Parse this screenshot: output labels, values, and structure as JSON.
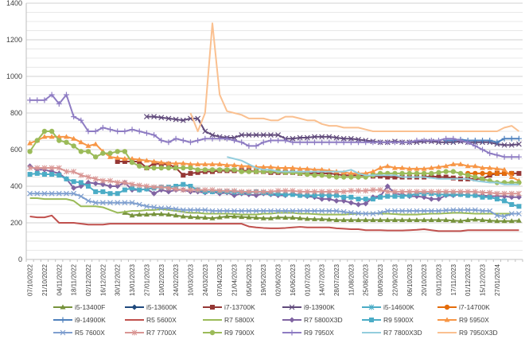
{
  "chart_data": {
    "type": "line",
    "title": "",
    "xlabel": "",
    "ylabel": "",
    "ylim": [
      0,
      1400
    ],
    "y_major_step": 200,
    "y_minor_step": 50,
    "grid": true,
    "legend_position": "bottom",
    "y_ticks": [
      "0",
      "200",
      "400",
      "600",
      "800",
      "1000",
      "1200",
      "1400"
    ],
    "x_tick_labels": [
      "07/10/2022",
      "21/10/2022",
      "04/11/2022",
      "18/11/2022",
      "02/12/2022",
      "16/12/2022",
      "30/12/2022",
      "13/01/2023",
      "27/01/2023",
      "10/02/2023",
      "24/02/2023",
      "10/03/2023",
      "24/03/2023",
      "07/04/2023",
      "21/04/2023",
      "05/05/2023",
      "19/05/2023",
      "02/06/2023",
      "16/06/2023",
      "01/07/2023",
      "14/07/2023",
      "28/07/2023",
      "11/08/2023",
      "25/08/2023",
      "08/09/2023",
      "22/09/2023",
      "06/10/2023",
      "20/10/2023",
      "03/11/2023",
      "17/11/2023",
      "01/12/2023",
      "15/12/2023",
      "27/01/2024"
    ],
    "n_points": 68,
    "series": [
      {
        "name": "i5-13400F",
        "color": "#77933C",
        "marker": "triangle",
        "start": 13,
        "values": [
          255,
          240,
          245,
          245,
          248,
          248,
          245,
          240,
          235,
          232,
          230,
          228,
          225,
          230,
          235,
          235,
          232,
          230,
          228,
          225,
          225,
          230,
          228,
          228,
          225,
          222,
          220,
          220,
          218,
          215,
          215,
          215,
          215,
          215,
          215,
          215,
          215,
          215,
          215,
          215,
          215,
          215,
          215,
          215,
          215,
          212,
          210,
          215,
          218,
          215,
          212,
          210,
          210,
          210,
          212,
          215,
          212,
          210,
          215
        ]
      },
      {
        "name": "i5-13600K",
        "color": "#1F497D",
        "marker": "diamond",
        "start": 0,
        "values": [
          null,
          null,
          null,
          null,
          null,
          null,
          null,
          null,
          null,
          null,
          null,
          null,
          null,
          null,
          null,
          null,
          null,
          null,
          null,
          null,
          null,
          null,
          null,
          null,
          null,
          null,
          null,
          null,
          null,
          null,
          null,
          null,
          null,
          null,
          null,
          null,
          null,
          null,
          null,
          null,
          null,
          null,
          null,
          null,
          null,
          null,
          null,
          null,
          null,
          null,
          null,
          null,
          null,
          null,
          null,
          null,
          null,
          null,
          null,
          null,
          null,
          null,
          null,
          null,
          null,
          null,
          null,
          null
        ]
      },
      {
        "name": "i7-13700K",
        "color": "#953735",
        "marker": "square",
        "start": 12,
        "values": [
          535,
          535,
          535,
          535,
          500,
          525,
          520,
          520,
          500,
          460,
          470,
          475,
          480,
          480,
          485,
          485,
          485,
          485,
          485,
          480,
          480,
          475,
          475,
          475,
          475,
          470,
          470,
          470,
          470,
          470,
          465,
          460,
          460,
          460,
          460,
          455,
          455,
          450,
          450,
          450,
          450,
          450,
          450,
          455,
          450,
          450,
          445,
          440,
          440,
          440,
          440,
          460,
          470,
          470,
          470,
          470,
          460,
          455,
          455,
          450,
          450,
          445,
          440,
          440,
          440,
          440
        ]
      },
      {
        "name": "i9-13900K",
        "color": "#604A7B",
        "marker": "x",
        "start": 16,
        "values": [
          780,
          780,
          775,
          770,
          765,
          760,
          770,
          770,
          700,
          680,
          670,
          665,
          665,
          680,
          680,
          680,
          680,
          680,
          680,
          660,
          660,
          665,
          665,
          670,
          670,
          670,
          665,
          660,
          660,
          655,
          650,
          645,
          640,
          640,
          645,
          640,
          640,
          640,
          645,
          645,
          640,
          640,
          640,
          645,
          640,
          640,
          640,
          640,
          630,
          625,
          625,
          630,
          630,
          640,
          645,
          650,
          650,
          650,
          650,
          650,
          650,
          650,
          640
        ]
      },
      {
        "name": "i5-14600K",
        "color": "#4BACC6",
        "marker": "asterisk",
        "start": 58,
        "values": [
          null
        ]
      },
      {
        "name": "i7-14700K",
        "color": "#E46C0A",
        "marker": "circle",
        "start": 60,
        "values": [
          470,
          470,
          470,
          470,
          470,
          470,
          470
        ]
      },
      {
        "name": "i9-14900K",
        "color": "#4F81BD",
        "marker": "plus",
        "start": 57,
        "values": [
          650,
          650,
          655,
          650,
          650,
          650,
          650,
          640,
          660,
          660,
          660
        ]
      },
      {
        "name": "R5 5600X",
        "color": "#C0504D",
        "marker": "none",
        "start": 0,
        "values": [
          235,
          230,
          230,
          240,
          200,
          200,
          200,
          195,
          190,
          190,
          190,
          195,
          195,
          195,
          195,
          195,
          195,
          195,
          195,
          195,
          195,
          195,
          195,
          195,
          195,
          195,
          195,
          195,
          195,
          195,
          180,
          175,
          172,
          170,
          170,
          172,
          175,
          178,
          175,
          175,
          175,
          175,
          170,
          168,
          165,
          165,
          160,
          160,
          160,
          158,
          158,
          158,
          160,
          162,
          165,
          160,
          155,
          155,
          155,
          155,
          160,
          160,
          160,
          160,
          160,
          160,
          160,
          160
        ]
      },
      {
        "name": "R7 5800X",
        "color": "#9BBB59",
        "marker": "none",
        "start": 0,
        "values": [
          335,
          335,
          330,
          330,
          330,
          330,
          320,
          290,
          290,
          290,
          285,
          270,
          255,
          260,
          265,
          265,
          270,
          270,
          275,
          270,
          265,
          260,
          255,
          255,
          250,
          250,
          250,
          250,
          248,
          245,
          245,
          245,
          250,
          250,
          255,
          255,
          255,
          250,
          250,
          248,
          245,
          245,
          245,
          245,
          248,
          250,
          250,
          252,
          250,
          250,
          248,
          245,
          245,
          245,
          248,
          250,
          250,
          252,
          255,
          255,
          252,
          250,
          250,
          250,
          250,
          250,
          250,
          250
        ]
      },
      {
        "name": "R7 5800X3D",
        "color": "#8064A2",
        "marker": "diamond",
        "start": 0,
        "values": [
          510,
          490,
          490,
          480,
          470,
          440,
          390,
          400,
          420,
          415,
          410,
          400,
          400,
          420,
          380,
          380,
          385,
          360,
          380,
          370,
          380,
          380,
          370,
          370,
          365,
          370,
          360,
          365,
          350,
          360,
          355,
          350,
          360,
          355,
          350,
          350,
          360,
          350,
          345,
          340,
          330,
          330,
          320,
          320,
          310,
          300,
          305,
          340,
          345,
          400,
          360,
          355,
          345,
          345,
          340,
          330,
          330,
          350,
          350,
          355,
          350,
          350,
          350,
          345,
          345,
          345,
          340,
          340
        ]
      },
      {
        "name": "R9 5900X",
        "color": "#4BACC6",
        "marker": "square",
        "start": 0,
        "values": [
          465,
          470,
          465,
          465,
          460,
          440,
          425,
          420,
          400,
          370,
          370,
          360,
          360,
          380,
          390,
          380,
          385,
          390,
          395,
          395,
          400,
          410,
          400,
          380,
          370,
          370,
          370,
          370,
          368,
          365,
          365,
          370,
          365,
          360,
          358,
          355,
          355,
          350,
          350,
          350,
          352,
          350,
          350,
          340,
          340,
          330,
          330,
          330,
          340,
          345,
          345,
          345,
          350,
          360,
          360,
          360,
          355,
          355,
          355,
          355,
          350,
          350,
          340,
          340,
          330,
          320,
          300,
          290
        ]
      },
      {
        "name": "R9 5950X",
        "color": "#F79646",
        "marker": "triangle",
        "start": 0,
        "values": [
          635,
          650,
          670,
          670,
          670,
          670,
          660,
          640,
          620,
          630,
          590,
          560,
          555,
          550,
          550,
          545,
          540,
          535,
          530,
          525,
          525,
          525,
          520,
          520,
          520,
          520,
          520,
          515,
          515,
          510,
          510,
          505,
          505,
          505,
          500,
          500,
          500,
          495,
          495,
          490,
          490,
          485,
          480,
          475,
          470,
          470,
          470,
          480,
          500,
          510,
          500,
          500,
          495,
          495,
          495,
          500,
          505,
          510,
          520,
          520,
          510,
          510,
          500,
          500,
          495,
          490,
          450,
          430
        ]
      },
      {
        "name": "R5 7600X",
        "color": "#7F9FCF",
        "marker": "x",
        "start": 0,
        "values": [
          360,
          360,
          360,
          360,
          360,
          360,
          360,
          345,
          320,
          310,
          310,
          310,
          310,
          310,
          310,
          300,
          290,
          285,
          280,
          280,
          275,
          270,
          270,
          270,
          270,
          265,
          265,
          265,
          265,
          265,
          265,
          265,
          265,
          265,
          265,
          265,
          265,
          265,
          265,
          265,
          265,
          265,
          265,
          260,
          255,
          252,
          250,
          250,
          255,
          265,
          265,
          265,
          265,
          265,
          265,
          265,
          265,
          268,
          270,
          270,
          270,
          270,
          265,
          265,
          240,
          235,
          250,
          250
        ]
      },
      {
        "name": "R7 7700X",
        "color": "#D99694",
        "marker": "asterisk",
        "start": 0,
        "values": [
          500,
          500,
          500,
          500,
          500,
          480,
          480,
          460,
          450,
          440,
          430,
          430,
          420,
          420,
          410,
          405,
          400,
          395,
          395,
          390,
          385,
          380,
          380,
          380,
          380,
          380,
          375,
          375,
          375,
          370,
          370,
          370,
          370,
          370,
          375,
          375,
          375,
          370,
          370,
          370,
          370,
          370,
          370,
          370,
          375,
          375,
          375,
          380,
          380,
          370,
          370,
          370,
          370,
          370,
          370,
          370,
          370,
          370,
          370,
          370,
          370,
          370,
          365,
          365,
          360,
          360,
          360,
          360
        ]
      },
      {
        "name": "R9 7900X",
        "color": "#9BBB59",
        "marker": "circle",
        "start": 0,
        "values": [
          590,
          650,
          700,
          700,
          650,
          640,
          620,
          590,
          590,
          560,
          580,
          580,
          590,
          590,
          530,
          510,
          500,
          500,
          500,
          500,
          500,
          500,
          500,
          490,
          490,
          490,
          490,
          490,
          490,
          480,
          480,
          480,
          480,
          480,
          480,
          475,
          475,
          470,
          465,
          460,
          460,
          455,
          450,
          450,
          450,
          450,
          450,
          460,
          470,
          470,
          470,
          470,
          470,
          470,
          470,
          470,
          475,
          480,
          480,
          470,
          460,
          450,
          440,
          430,
          420,
          420,
          420,
          420
        ]
      },
      {
        "name": "R9 7950X",
        "color": "#8E7CC3",
        "marker": "plus",
        "start": 0,
        "values": [
          870,
          870,
          870,
          900,
          850,
          900,
          780,
          760,
          700,
          700,
          720,
          710,
          700,
          700,
          710,
          700,
          690,
          680,
          650,
          640,
          660,
          650,
          640,
          650,
          660,
          660,
          660,
          660,
          650,
          640,
          620,
          620,
          640,
          650,
          650,
          650,
          640,
          640,
          640,
          640,
          640,
          640,
          640,
          640,
          640,
          640,
          640,
          640,
          640,
          640,
          640,
          640,
          640,
          650,
          650,
          650,
          650,
          660,
          660,
          650,
          640,
          620,
          600,
          580,
          570,
          560,
          560,
          560
        ]
      },
      {
        "name": "R7 7800X3D",
        "color": "#93CDDD",
        "marker": "none",
        "start": 27,
        "values": [
          560,
          550,
          540,
          520,
          500,
          490,
          490,
          480,
          480,
          480,
          480,
          480,
          480,
          480,
          480,
          480,
          480,
          490,
          470,
          460,
          460,
          460,
          460,
          460,
          450,
          450,
          450,
          450,
          445,
          440,
          440,
          440,
          440,
          440,
          430,
          425,
          420,
          420,
          410,
          410,
          410
        ]
      },
      {
        "name": "R9 7950X3D",
        "color": "#FAC090",
        "marker": "none",
        "start": 22,
        "values": [
          800,
          700,
          800,
          1290,
          900,
          810,
          800,
          790,
          770,
          770,
          770,
          760,
          760,
          780,
          780,
          770,
          760,
          760,
          740,
          730,
          730,
          720,
          720,
          720,
          710,
          700,
          700,
          700,
          700,
          700,
          700,
          700,
          700,
          700,
          700,
          700,
          700,
          700,
          700,
          700,
          700,
          700,
          700,
          720,
          730,
          700,
          650,
          620,
          620,
          640,
          640,
          640,
          640,
          660,
          660,
          700,
          700,
          700
        ]
      }
    ]
  }
}
